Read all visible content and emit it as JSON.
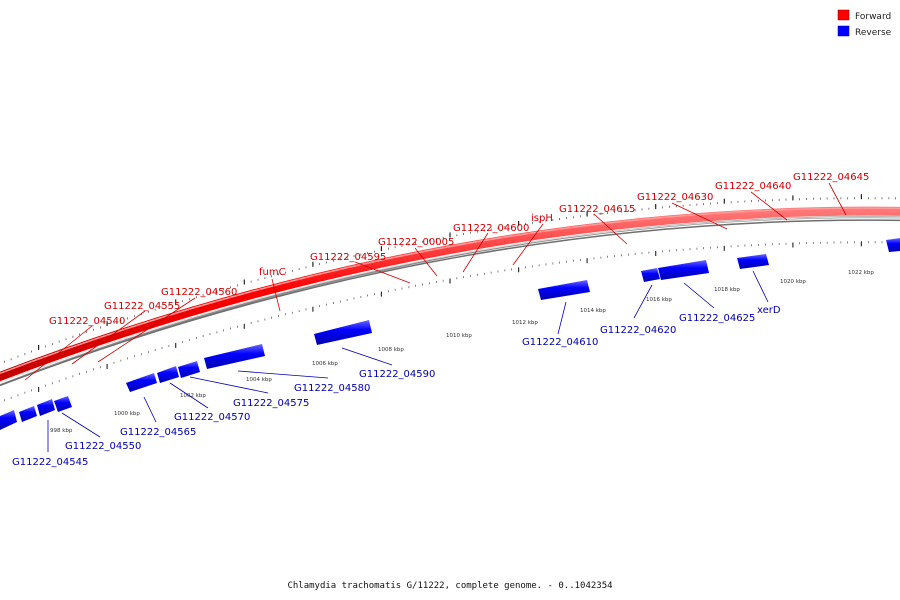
{
  "caption": "Chlamydia trachomatis G/11222, complete genome. - 0..1042354",
  "legend": [
    {
      "label": "Forward",
      "color": "#ff0000"
    },
    {
      "label": "Reverse",
      "color": "#0000ff"
    }
  ],
  "scale_labels": [
    "998 kbp",
    "1000 kbp",
    "1002 kbp",
    "1004 kbp",
    "1006 kbp",
    "1008 kbp",
    "1010 kbp",
    "1012 kbp",
    "1014 kbp",
    "1016 kbp",
    "1018 kbp",
    "1020 kbp",
    "1022 kbp"
  ],
  "forward_genes": [
    {
      "name": "G11222_04540"
    },
    {
      "name": "G11222_04555"
    },
    {
      "name": "G11222_04560"
    },
    {
      "name": "fumC"
    },
    {
      "name": "G11222_04595"
    },
    {
      "name": "G11222_00005"
    },
    {
      "name": "G11222_04600"
    },
    {
      "name": "ispH"
    },
    {
      "name": "G11222_04615"
    },
    {
      "name": "G11222_04630"
    },
    {
      "name": "G11222_04640"
    },
    {
      "name": "G11222_04645"
    }
  ],
  "reverse_genes": [
    {
      "name": "G11222_04545"
    },
    {
      "name": "G11222_04550"
    },
    {
      "name": "G11222_04565"
    },
    {
      "name": "G11222_04570"
    },
    {
      "name": "G11222_04575"
    },
    {
      "name": "G11222_04580"
    },
    {
      "name": "G11222_04590"
    },
    {
      "name": "G11222_04610"
    },
    {
      "name": "G11222_04620"
    },
    {
      "name": "G11222_04625"
    },
    {
      "name": "xerD"
    }
  ],
  "colors": {
    "forward": "#ff0000",
    "reverse": "#0000ff",
    "backbone": "#888888"
  }
}
